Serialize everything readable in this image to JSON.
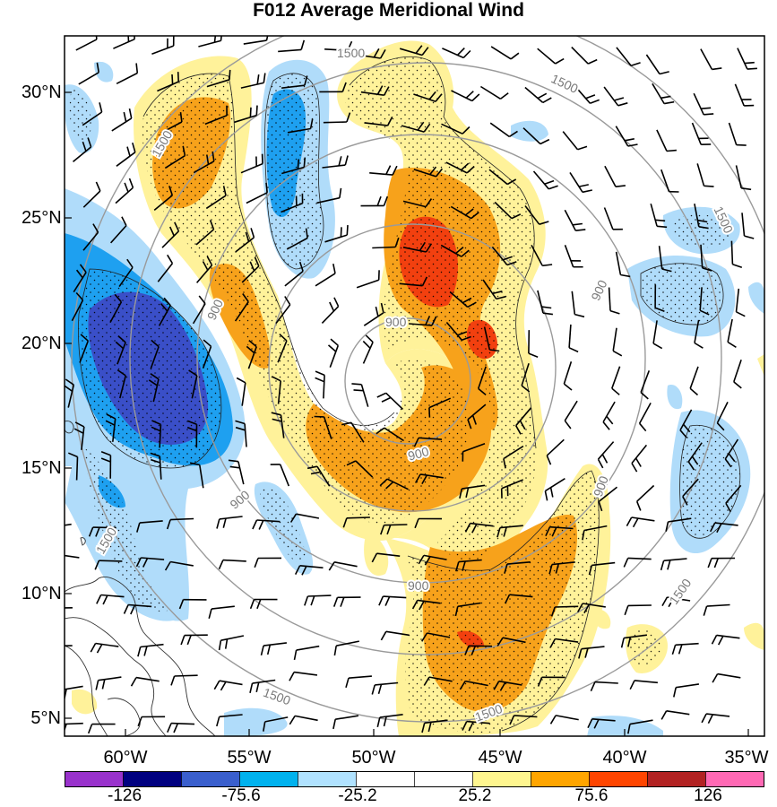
{
  "title": "F012 Average Meridional Wind",
  "latitude_labels": [
    "30°N",
    "25°N",
    "20°N",
    "15°N",
    "10°N",
    "5°N"
  ],
  "longitude_labels": [
    "60°W",
    "55°W",
    "50°W",
    "45°W",
    "40°W",
    "35°W"
  ],
  "contour_labels": [
    "1500",
    "1500",
    "1500",
    "1500",
    "1500",
    "1500",
    "1500",
    "900",
    "900",
    "900",
    "900",
    "900",
    "900",
    "900"
  ],
  "colorbar": {
    "labels": [
      "-126",
      "-75.6",
      "-25.2",
      "25.2",
      "75.6",
      "126"
    ],
    "colors": [
      "#9932cc",
      "#000080",
      "#3a5fcd",
      "#00b2ee",
      "#b0e2ff",
      "#ffffff",
      "#ffffff",
      "#fff68f",
      "#ffa500",
      "#ff4500",
      "#b22222",
      "#ff69b4"
    ]
  },
  "colors": {
    "strong_negative": "#3a4fc8",
    "negative": "#1ea0f0",
    "weak_negative": "#b0dcfa",
    "weak_positive": "#fff29a",
    "positive": "#f7a21b",
    "strong_positive": "#f2400f",
    "contour": "#9a9a9a",
    "coast": "#333333"
  }
}
